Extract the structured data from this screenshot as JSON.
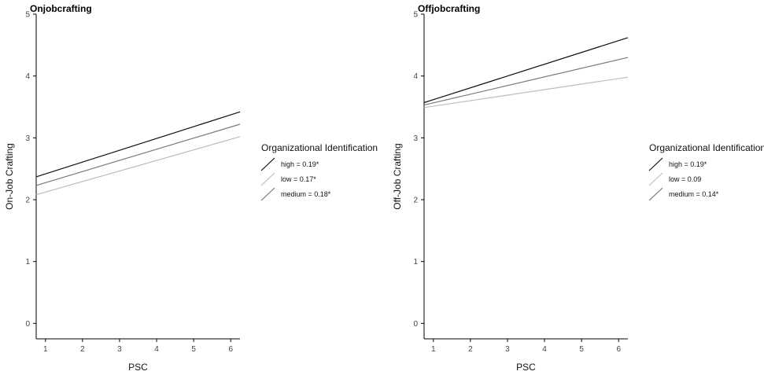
{
  "chart_data": [
    {
      "type": "line",
      "title": "Onjobcrafting",
      "xlabel": "PSC",
      "ylabel": "On-Job Crafting",
      "xlim": [
        0.75,
        6.25
      ],
      "ylim": [
        -0.25,
        5.0
      ],
      "xticks": [
        1,
        2,
        3,
        4,
        5,
        6
      ],
      "yticks": [
        0,
        1,
        2,
        3,
        4,
        5
      ],
      "legend": {
        "title": "Organizational Identification",
        "placement": "right"
      },
      "series": [
        {
          "name": "high = 0.19*",
          "color": "#111111",
          "x": [
            0.75,
            6.25
          ],
          "y": [
            2.37,
            3.42
          ]
        },
        {
          "name": "low = 0.17*",
          "color": "#bdbdbd",
          "x": [
            0.75,
            6.25
          ],
          "y": [
            2.08,
            3.02
          ]
        },
        {
          "name": "medium = 0.18*",
          "color": "#7a7a7a",
          "x": [
            0.75,
            6.25
          ],
          "y": [
            2.23,
            3.22
          ]
        }
      ]
    },
    {
      "type": "line",
      "title": "Offjobcrafting",
      "xlabel": "PSC",
      "ylabel": "Off-Job Crafting",
      "xlim": [
        0.75,
        6.25
      ],
      "ylim": [
        -0.25,
        5.0
      ],
      "xticks": [
        1,
        2,
        3,
        4,
        5,
        6
      ],
      "yticks": [
        0,
        1,
        2,
        3,
        4,
        5
      ],
      "legend": {
        "title": "Organizational Identification",
        "placement": "right"
      },
      "series": [
        {
          "name": "high = 0.19*",
          "color": "#111111",
          "x": [
            0.75,
            6.25
          ],
          "y": [
            3.57,
            4.62
          ]
        },
        {
          "name": "low = 0.09",
          "color": "#bdbdbd",
          "x": [
            0.75,
            6.25
          ],
          "y": [
            3.49,
            3.98
          ]
        },
        {
          "name": "medium = 0.14*",
          "color": "#7a7a7a",
          "x": [
            0.75,
            6.25
          ],
          "y": [
            3.53,
            4.3
          ]
        }
      ]
    }
  ]
}
